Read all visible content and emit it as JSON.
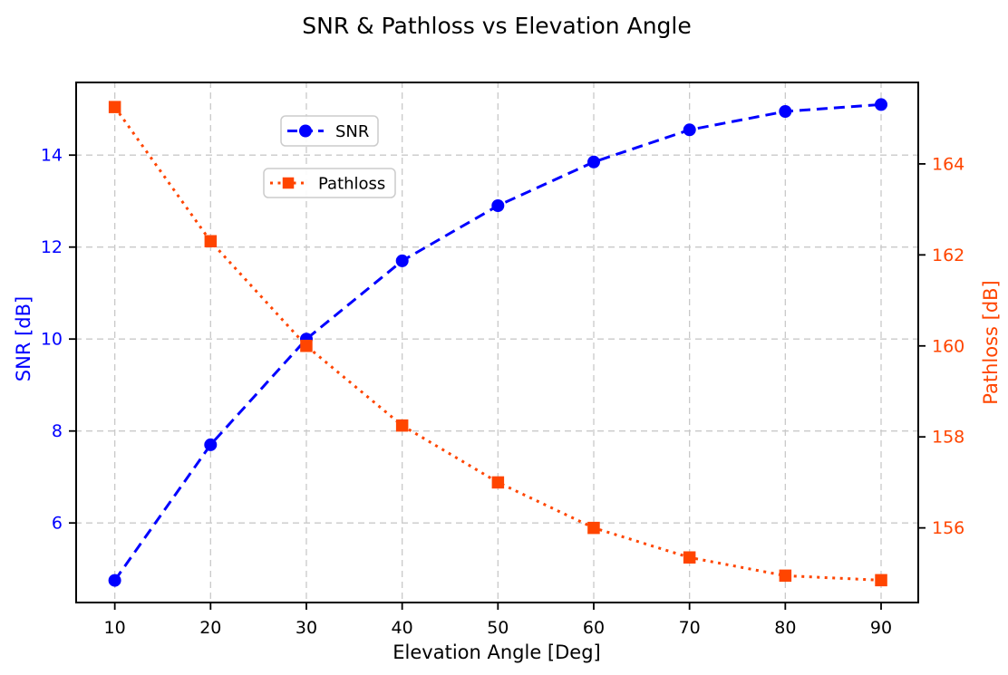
{
  "figure": {
    "background": "#FFFFFF",
    "spine_color": "#000000",
    "grid_color": "#C9C9C9",
    "text_color": "#000000",
    "legend_border_color": "#CCCCCC"
  },
  "chart_data": {
    "type": "line",
    "title": "SNR & Pathloss vs Elevation Angle",
    "xlabel": "Elevation Angle [Deg]",
    "ylabel_left": "SNR [dB]",
    "ylabel_right": "Pathloss [dB]",
    "x": [
      10,
      20,
      30,
      40,
      50,
      60,
      70,
      80,
      90
    ],
    "x_ticks": [
      "10",
      "20",
      "30",
      "40",
      "50",
      "60",
      "70",
      "80",
      "90"
    ],
    "y_ticks_left": [
      "6",
      "8",
      "10",
      "12",
      "14"
    ],
    "y_ticks_right": [
      "156",
      "158",
      "160",
      "162",
      "164"
    ],
    "xlim": [
      5.87,
      93.88
    ],
    "ylim_left": [
      4.27,
      15.6
    ],
    "ylim_right": [
      154.36,
      165.81
    ],
    "grid": true,
    "axis_color_left": "#0000FF",
    "axis_color_right": "#FF4500",
    "series": [
      {
        "name": "SNR",
        "axis": "left",
        "color": "#0000FF",
        "linestyle": "dashed",
        "marker": "circle",
        "values": [
          4.75,
          7.7,
          10.0,
          11.7,
          12.9,
          13.85,
          14.55,
          14.95,
          15.1
        ]
      },
      {
        "name": "Pathloss",
        "axis": "right",
        "color": "#FF4500",
        "linestyle": "dotted",
        "marker": "square",
        "values": [
          165.25,
          162.3,
          160.0,
          158.25,
          157.0,
          156.0,
          155.35,
          154.95,
          154.85
        ]
      }
    ],
    "legend": {
      "entries": [
        "SNR",
        "Pathloss"
      ],
      "position": "upper left, stacked boxes"
    }
  }
}
